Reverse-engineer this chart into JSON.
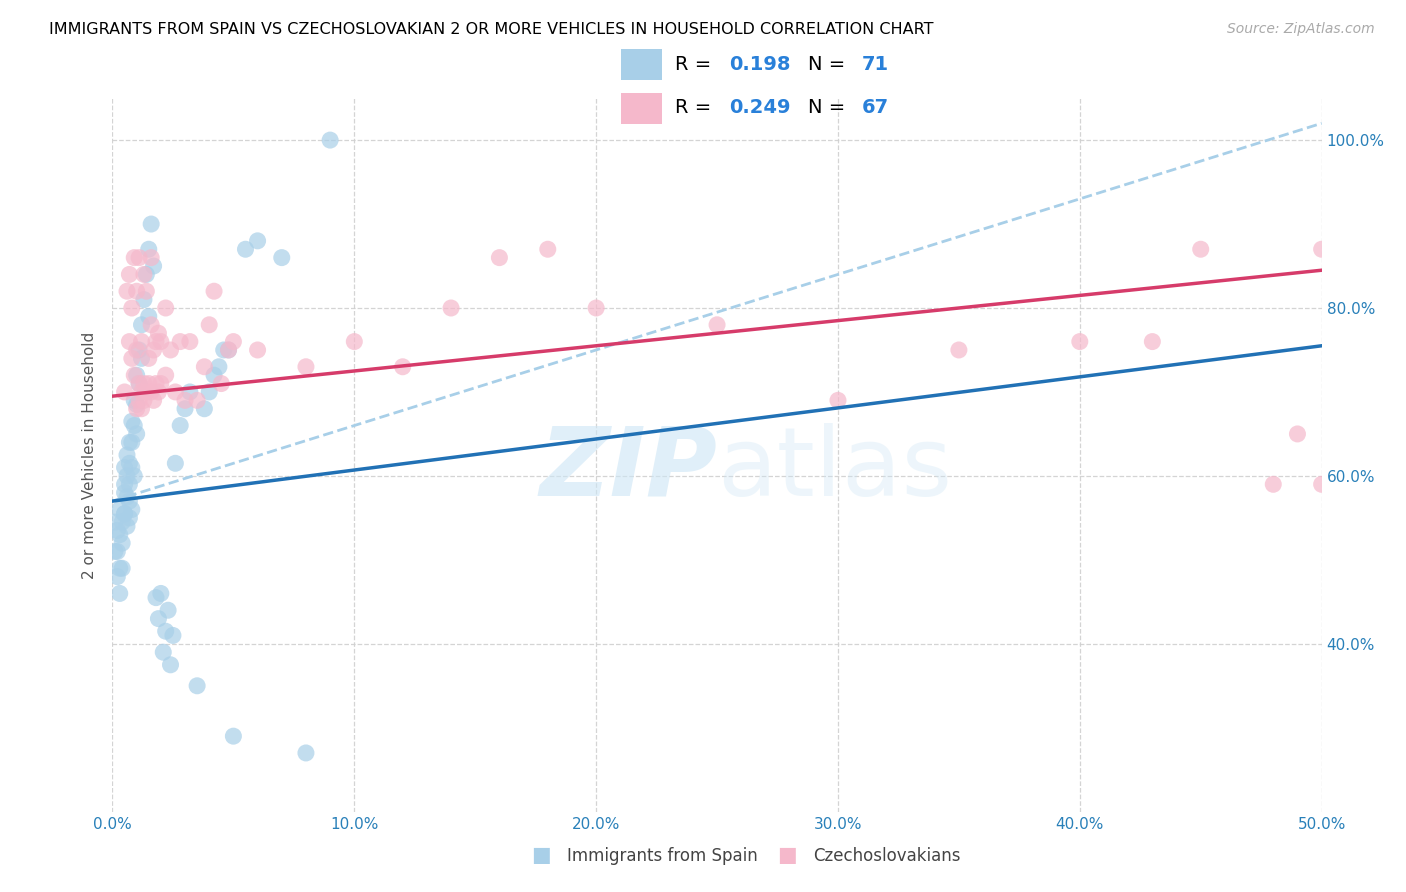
{
  "title": "IMMIGRANTS FROM SPAIN VS CZECHOSLOVAKIAN 2 OR MORE VEHICLES IN HOUSEHOLD CORRELATION CHART",
  "source": "Source: ZipAtlas.com",
  "ylabel": "2 or more Vehicles in Household",
  "xmin": 0.0,
  "xmax": 0.5,
  "ymin": 0.2,
  "ymax": 1.05,
  "legend1_label": "Immigrants from Spain",
  "legend2_label": "Czechoslovakians",
  "r1_val": "0.198",
  "n1_val": "71",
  "r2_val": "0.249",
  "n2_val": "67",
  "blue_color": "#a8cfe8",
  "pink_color": "#f5b8cb",
  "blue_line_color": "#2171b5",
  "pink_line_color": "#d63b6a",
  "dashed_line_color": "#a8cfe8",
  "stat_color": "#2980d9",
  "watermark_color": "#cce5f5",
  "blue_scatter_x": [
    0.001,
    0.001,
    0.002,
    0.002,
    0.002,
    0.003,
    0.003,
    0.003,
    0.003,
    0.004,
    0.004,
    0.004,
    0.005,
    0.005,
    0.005,
    0.005,
    0.005,
    0.006,
    0.006,
    0.006,
    0.006,
    0.007,
    0.007,
    0.007,
    0.007,
    0.007,
    0.008,
    0.008,
    0.008,
    0.008,
    0.009,
    0.009,
    0.009,
    0.01,
    0.01,
    0.01,
    0.011,
    0.011,
    0.012,
    0.012,
    0.013,
    0.014,
    0.015,
    0.015,
    0.016,
    0.017,
    0.018,
    0.019,
    0.02,
    0.021,
    0.022,
    0.023,
    0.024,
    0.025,
    0.026,
    0.028,
    0.03,
    0.032,
    0.035,
    0.038,
    0.04,
    0.042,
    0.044,
    0.046,
    0.048,
    0.05,
    0.055,
    0.06,
    0.07,
    0.08,
    0.09
  ],
  "blue_scatter_y": [
    0.545,
    0.51,
    0.535,
    0.51,
    0.48,
    0.56,
    0.53,
    0.49,
    0.46,
    0.545,
    0.52,
    0.49,
    0.58,
    0.555,
    0.59,
    0.61,
    0.555,
    0.625,
    0.6,
    0.575,
    0.54,
    0.64,
    0.615,
    0.59,
    0.57,
    0.55,
    0.665,
    0.64,
    0.61,
    0.56,
    0.69,
    0.66,
    0.6,
    0.72,
    0.685,
    0.65,
    0.75,
    0.71,
    0.78,
    0.74,
    0.81,
    0.84,
    0.87,
    0.79,
    0.9,
    0.85,
    0.455,
    0.43,
    0.46,
    0.39,
    0.415,
    0.44,
    0.375,
    0.41,
    0.615,
    0.66,
    0.68,
    0.7,
    0.35,
    0.68,
    0.7,
    0.72,
    0.73,
    0.75,
    0.75,
    0.29,
    0.87,
    0.88,
    0.86,
    0.27,
    1.0
  ],
  "pink_scatter_x": [
    0.005,
    0.006,
    0.007,
    0.007,
    0.008,
    0.008,
    0.009,
    0.009,
    0.01,
    0.01,
    0.01,
    0.011,
    0.011,
    0.011,
    0.012,
    0.012,
    0.012,
    0.013,
    0.013,
    0.013,
    0.014,
    0.014,
    0.015,
    0.015,
    0.016,
    0.016,
    0.016,
    0.017,
    0.017,
    0.018,
    0.018,
    0.019,
    0.019,
    0.02,
    0.02,
    0.022,
    0.022,
    0.024,
    0.026,
    0.028,
    0.03,
    0.032,
    0.035,
    0.038,
    0.04,
    0.042,
    0.045,
    0.048,
    0.05,
    0.06,
    0.08,
    0.1,
    0.12,
    0.14,
    0.16,
    0.18,
    0.2,
    0.25,
    0.3,
    0.35,
    0.4,
    0.43,
    0.45,
    0.48,
    0.49,
    0.5,
    0.5
  ],
  "pink_scatter_y": [
    0.7,
    0.82,
    0.84,
    0.76,
    0.74,
    0.8,
    0.86,
    0.72,
    0.68,
    0.75,
    0.82,
    0.69,
    0.71,
    0.86,
    0.68,
    0.7,
    0.76,
    0.69,
    0.71,
    0.84,
    0.7,
    0.82,
    0.74,
    0.71,
    0.78,
    0.7,
    0.86,
    0.69,
    0.75,
    0.71,
    0.76,
    0.7,
    0.77,
    0.76,
    0.71,
    0.72,
    0.8,
    0.75,
    0.7,
    0.76,
    0.69,
    0.76,
    0.69,
    0.73,
    0.78,
    0.82,
    0.71,
    0.75,
    0.76,
    0.75,
    0.73,
    0.76,
    0.73,
    0.8,
    0.86,
    0.87,
    0.8,
    0.78,
    0.69,
    0.75,
    0.76,
    0.76,
    0.87,
    0.59,
    0.65,
    0.59,
    0.87
  ],
  "yticks": [
    0.4,
    0.6,
    0.8,
    1.0
  ],
  "ytick_labels": [
    "40.0%",
    "60.0%",
    "80.0%",
    "100.0%"
  ],
  "xticks": [
    0.0,
    0.1,
    0.2,
    0.3,
    0.4,
    0.5
  ],
  "xtick_labels": [
    "0.0%",
    "10.0%",
    "20.0%",
    "30.0%",
    "40.0%",
    "50.0%"
  ],
  "blue_trend_y_at_0": 0.57,
  "blue_trend_y_at_05": 0.755,
  "pink_trend_y_at_0": 0.695,
  "pink_trend_y_at_05": 0.845
}
